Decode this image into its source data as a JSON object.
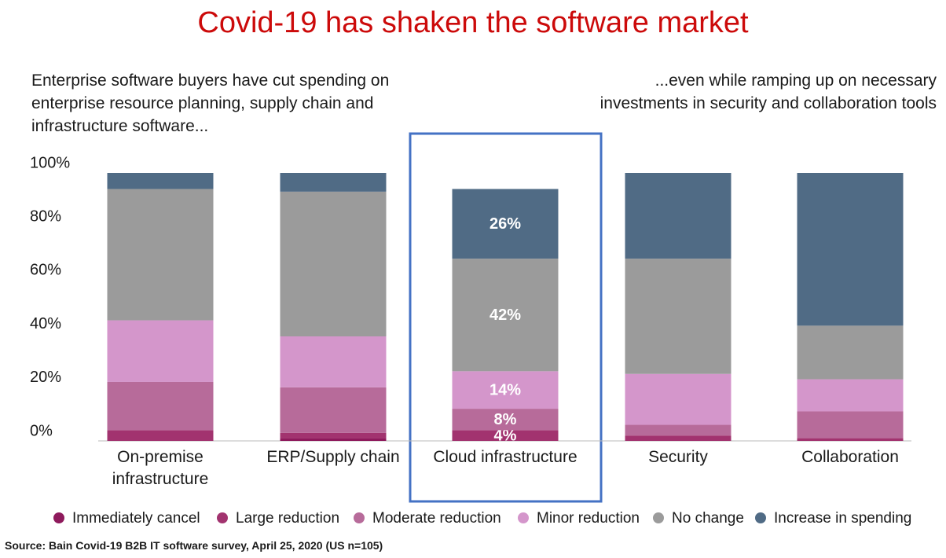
{
  "chart_data": {
    "type": "stacked_bar",
    "title": "Covid-19 has shaken the software market",
    "subtitle_left": "Enterprise software buyers have cut spending on enterprise resource planning, supply chain and infrastructure software...",
    "subtitle_right": "...even while ramping up on necessary investments in security and collaboration tools",
    "source": "Source: Bain Covid-19 B2B IT software survey, April 25, 2020 (US n=105)",
    "categories": [
      "On-premise infrastructure",
      "ERP/Supply chain",
      "Cloud infrastructure",
      "Security",
      "Collaboration"
    ],
    "series": [
      {
        "name": "Immediately cancel",
        "color": "#8e1a5c",
        "values": [
          0,
          1,
          0,
          0,
          0
        ],
        "value_labels": [
          null,
          null,
          null,
          null,
          null
        ]
      },
      {
        "name": "Large reduction",
        "color": "#a2336f",
        "values": [
          4,
          2,
          4,
          2,
          1
        ],
        "value_labels": [
          null,
          null,
          "4%",
          null,
          null
        ]
      },
      {
        "name": "Moderate reduction",
        "color": "#b76b9a",
        "values": [
          18,
          17,
          8,
          4,
          10
        ],
        "value_labels": [
          null,
          null,
          "8%",
          null,
          null
        ]
      },
      {
        "name": "Minor reduction",
        "color": "#d496cb",
        "values": [
          23,
          19,
          14,
          19,
          12
        ],
        "value_labels": [
          null,
          null,
          "14%",
          null,
          null
        ]
      },
      {
        "name": "No change",
        "color": "#9b9b9b",
        "values": [
          49,
          54,
          42,
          43,
          20
        ],
        "value_labels": [
          null,
          null,
          "42%",
          null,
          null
        ]
      },
      {
        "name": "Increase in spending",
        "color": "#506b85",
        "values": [
          6,
          7,
          26,
          32,
          57
        ],
        "value_labels": [
          null,
          null,
          "26%",
          null,
          null
        ]
      }
    ],
    "ylim": [
      0,
      100
    ],
    "yticks": [
      {
        "value": 0,
        "label": "0%"
      },
      {
        "value": 20,
        "label": "20%"
      },
      {
        "value": 40,
        "label": "40%"
      },
      {
        "value": 60,
        "label": "60%"
      },
      {
        "value": 80,
        "label": "80%"
      },
      {
        "value": 100,
        "label": "100%"
      }
    ],
    "grid": false
  }
}
